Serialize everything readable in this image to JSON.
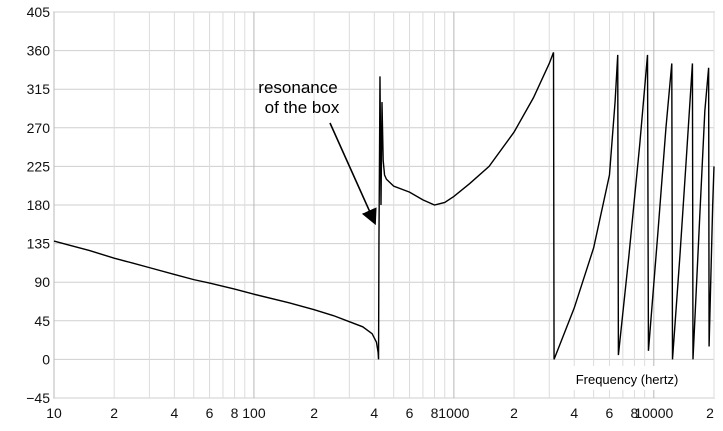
{
  "chart_data": {
    "type": "line",
    "x_scale": "log",
    "xlim": [
      10,
      20000
    ],
    "ylim": [
      -45,
      405
    ],
    "y_ticks": [
      "405",
      "360",
      "315",
      "270",
      "225",
      "180",
      "135",
      "90",
      "45",
      "0",
      "−45"
    ],
    "y_tick_values": [
      405,
      360,
      315,
      270,
      225,
      180,
      135,
      90,
      45,
      0,
      -45
    ],
    "x_ticks": [
      {
        "v": 10,
        "label": "10"
      },
      {
        "v": 20,
        "label": "2"
      },
      {
        "v": 40,
        "label": "4"
      },
      {
        "v": 60,
        "label": "6"
      },
      {
        "v": 80,
        "label": "8"
      },
      {
        "v": 100,
        "label": "100"
      },
      {
        "v": 200,
        "label": "2"
      },
      {
        "v": 400,
        "label": "4"
      },
      {
        "v": 600,
        "label": "6"
      },
      {
        "v": 800,
        "label": "8"
      },
      {
        "v": 1000,
        "label": "1000"
      },
      {
        "v": 2000,
        "label": "2"
      },
      {
        "v": 4000,
        "label": "4"
      },
      {
        "v": 6000,
        "label": "6"
      },
      {
        "v": 8000,
        "label": "8"
      },
      {
        "v": 10000,
        "label": "10000"
      },
      {
        "v": 20000,
        "label": "2"
      }
    ],
    "grid": true,
    "xlabel": "Frequency (hertz)",
    "ylabel": "",
    "annotation": {
      "lines": [
        "resonance",
        "of the box"
      ],
      "target": [
        420,
        160
      ]
    },
    "series": [
      {
        "color": "#000000",
        "points": [
          [
            10,
            138
          ],
          [
            12,
            133
          ],
          [
            15,
            127
          ],
          [
            20,
            118
          ],
          [
            25,
            112
          ],
          [
            30,
            107
          ],
          [
            40,
            99
          ],
          [
            50,
            93
          ],
          [
            60,
            89
          ],
          [
            80,
            82
          ],
          [
            100,
            76
          ],
          [
            150,
            66
          ],
          [
            200,
            58
          ],
          [
            250,
            51
          ],
          [
            300,
            44
          ],
          [
            350,
            38
          ],
          [
            390,
            30
          ],
          [
            410,
            20
          ],
          [
            418,
            8
          ],
          [
            420,
            0
          ],
          [
            422,
            140
          ],
          [
            425,
            250
          ],
          [
            427,
            330
          ],
          [
            432,
            180
          ],
          [
            437,
            300
          ],
          [
            443,
            232
          ],
          [
            450,
            215
          ],
          [
            460,
            210
          ],
          [
            500,
            202
          ],
          [
            600,
            195
          ],
          [
            700,
            186
          ],
          [
            800,
            180
          ],
          [
            900,
            183
          ],
          [
            1000,
            190
          ],
          [
            1200,
            205
          ],
          [
            1500,
            225
          ],
          [
            2000,
            265
          ],
          [
            2500,
            305
          ],
          [
            3000,
            345
          ],
          [
            3150,
            358
          ],
          [
            3170,
            0
          ],
          [
            4000,
            60
          ],
          [
            5000,
            130
          ],
          [
            6000,
            215
          ],
          [
            6400,
            300
          ],
          [
            6600,
            355
          ],
          [
            6650,
            5
          ],
          [
            7500,
            120
          ],
          [
            8500,
            250
          ],
          [
            9300,
            355
          ],
          [
            9400,
            10
          ],
          [
            10500,
            150
          ],
          [
            11500,
            270
          ],
          [
            12300,
            345
          ],
          [
            12400,
            0
          ],
          [
            13500,
            120
          ],
          [
            14500,
            230
          ],
          [
            15600,
            345
          ],
          [
            15700,
            0
          ],
          [
            17000,
            170
          ],
          [
            18000,
            290
          ],
          [
            18800,
            340
          ],
          [
            18900,
            15
          ],
          [
            19700,
            180
          ],
          [
            20000,
            225
          ]
        ]
      }
    ]
  }
}
